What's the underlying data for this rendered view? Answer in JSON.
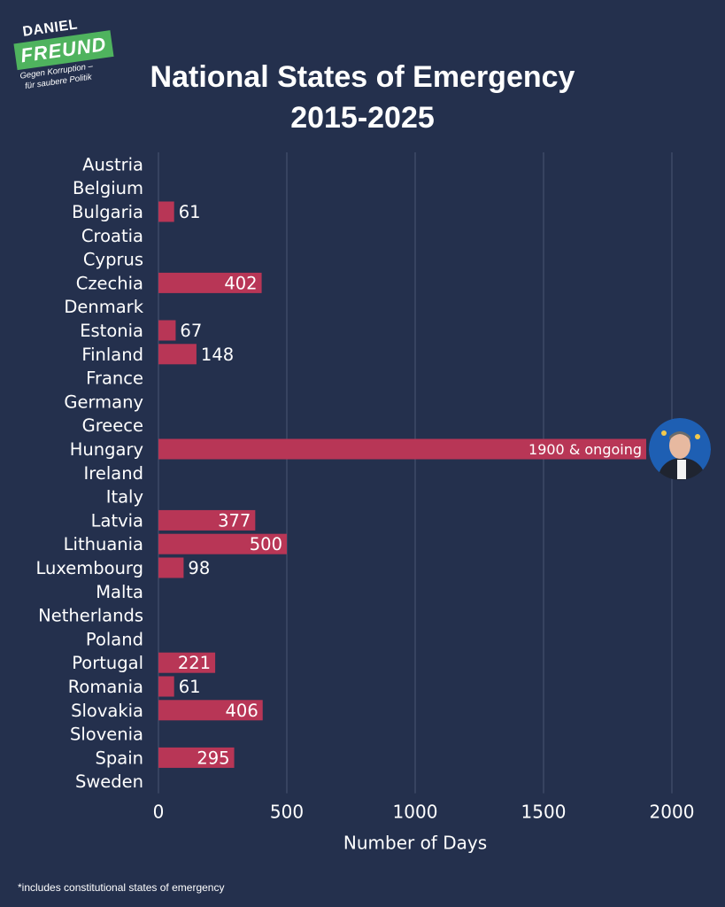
{
  "logo": {
    "name": "DANIEL",
    "surname": "FREUND",
    "tagline_line1": "Gegen Korruption –",
    "tagline_line2": "für saubere Politik"
  },
  "title_line1": "National States of Emergency",
  "title_line2": "2015-2025",
  "footnote": "*includes constitutional states of emergency",
  "colors": {
    "background": "#24304d",
    "bar": "#b83656",
    "grid": "#4a5673",
    "text": "#ffffff"
  },
  "chart_data": {
    "type": "bar",
    "orientation": "horizontal",
    "xlabel": "Number of Days",
    "ylabel": "",
    "xlim": [
      0,
      2000
    ],
    "xticks": [
      0,
      500,
      1000,
      1500,
      2000
    ],
    "grid": true,
    "categories": [
      "Austria",
      "Belgium",
      "Bulgaria",
      "Croatia",
      "Cyprus",
      "Czechia",
      "Denmark",
      "Estonia",
      "Finland",
      "France",
      "Germany",
      "Greece",
      "Hungary",
      "Ireland",
      "Italy",
      "Latvia",
      "Lithuania",
      "Luxembourg",
      "Malta",
      "Netherlands",
      "Poland",
      "Portugal",
      "Romania",
      "Slovakia",
      "Slovenia",
      "Spain",
      "Sweden"
    ],
    "values": [
      0,
      0,
      61,
      0,
      0,
      402,
      0,
      67,
      148,
      0,
      0,
      0,
      1900,
      0,
      0,
      377,
      500,
      98,
      0,
      0,
      0,
      221,
      61,
      406,
      0,
      295,
      0
    ],
    "labels": [
      "",
      "",
      "61",
      "",
      "",
      "402",
      "",
      "67",
      "148",
      "",
      "",
      "",
      "1900 & ongoing",
      "",
      "",
      "377",
      "500",
      "98",
      "",
      "",
      "",
      "221",
      "61",
      "406",
      "",
      "295",
      ""
    ],
    "annotation": {
      "category": "Hungary",
      "image": "portrait-photo"
    }
  }
}
